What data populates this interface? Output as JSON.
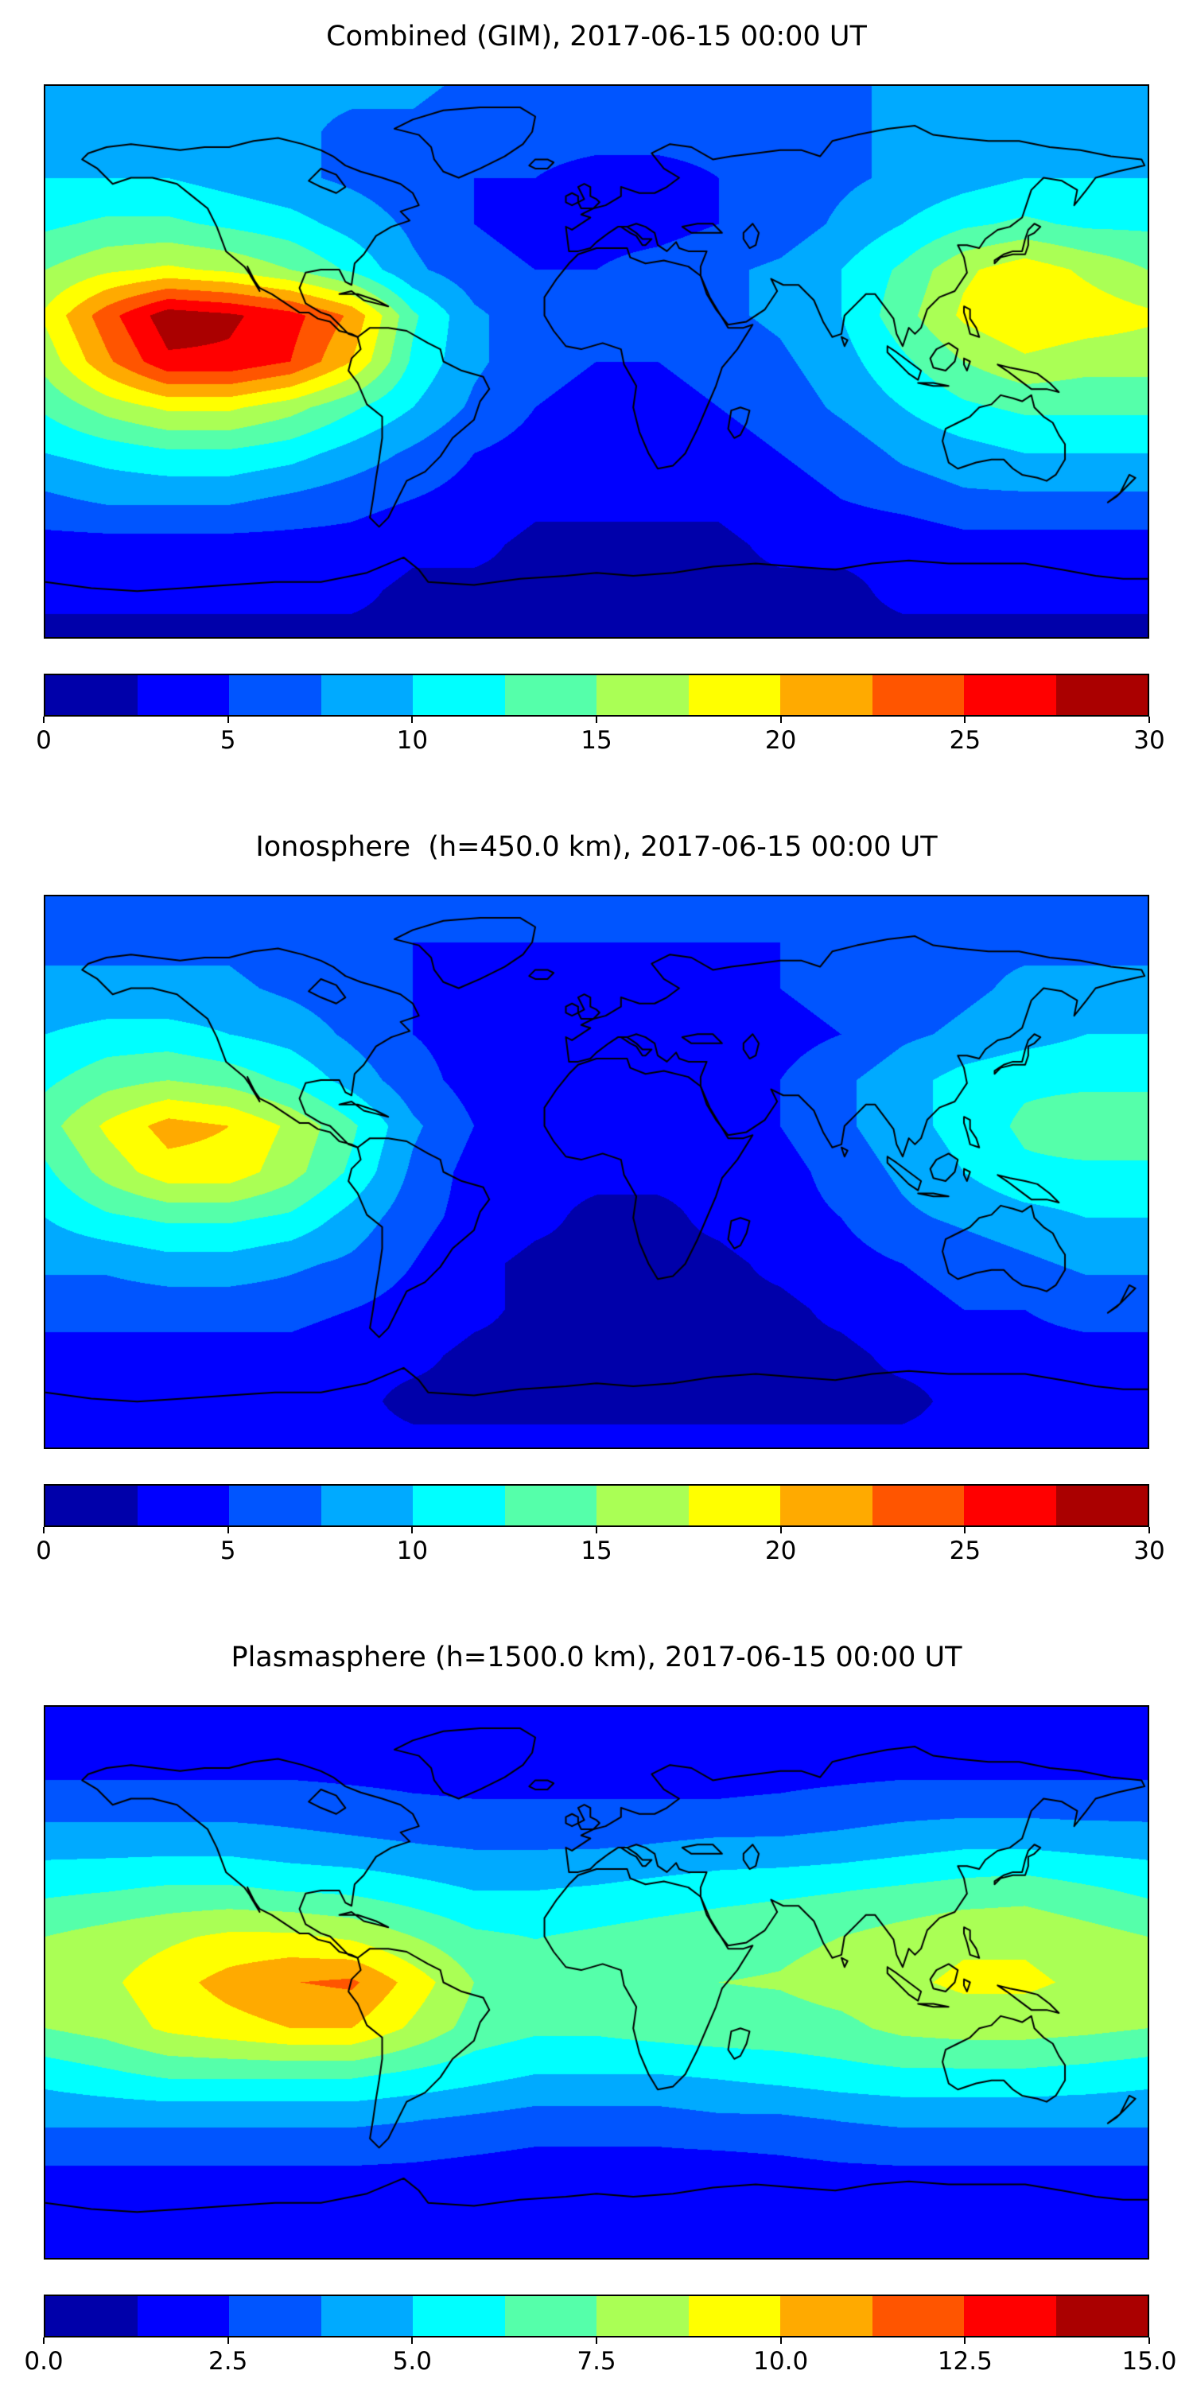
{
  "figure": {
    "panels": [
      {
        "title": "Combined (GIM), 2017-06-15 00:00 UT",
        "colorbar": {
          "min": 0,
          "max": 30,
          "tick_labels": [
            "0",
            "5",
            "10",
            "15",
            "20",
            "25",
            "30"
          ],
          "tick_values": [
            0,
            5,
            10,
            15,
            20,
            25,
            30
          ],
          "n_bands": 12
        }
      },
      {
        "title": "Ionosphere  (h=450.0 km), 2017-06-15 00:00 UT",
        "colorbar": {
          "min": 0,
          "max": 30,
          "tick_labels": [
            "0",
            "5",
            "10",
            "15",
            "20",
            "25",
            "30"
          ],
          "tick_values": [
            0,
            5,
            10,
            15,
            20,
            25,
            30
          ],
          "n_bands": 12
        }
      },
      {
        "title": "Plasmasphere (h=1500.0 km), 2017-06-15 00:00 UT",
        "colorbar": {
          "min": 0,
          "max": 15,
          "tick_labels": [
            "0.0",
            "2.5",
            "5.0",
            "7.5",
            "10.0",
            "12.5",
            "15.0"
          ],
          "tick_values": [
            0,
            2.5,
            5,
            7.5,
            10,
            12.5,
            15
          ],
          "n_bands": 12
        }
      }
    ]
  },
  "chart_data": [
    {
      "type": "heatmap",
      "title": "Combined (GIM), 2017-06-15 00:00 UT",
      "projection": "equirectangular",
      "colormap": "jet",
      "lon_range": [
        -180,
        180
      ],
      "lat_range": [
        -90,
        90
      ],
      "levels": {
        "min": 0,
        "max": 30,
        "step": 2.5
      },
      "colorbar_ticks": [
        0,
        5,
        10,
        15,
        20,
        25,
        30
      ],
      "lon": [
        -180,
        -160,
        -140,
        -120,
        -100,
        -80,
        -60,
        -40,
        -20,
        0,
        20,
        40,
        60,
        80,
        100,
        120,
        140,
        160,
        180
      ],
      "lat": [
        90,
        75,
        60,
        45,
        30,
        15,
        0,
        -15,
        -30,
        -45,
        -60,
        -75,
        -90
      ],
      "values": [
        [
          8,
          8,
          8,
          8,
          8,
          8,
          8,
          7,
          7,
          7,
          7,
          7,
          7,
          7,
          8,
          8,
          8,
          8,
          8
        ],
        [
          9,
          9,
          9,
          8,
          8,
          7,
          7,
          6,
          6,
          6,
          6,
          6,
          7,
          7,
          8,
          8,
          9,
          9,
          9
        ],
        [
          10,
          10,
          10,
          9,
          8,
          7,
          6,
          5,
          5,
          4,
          4,
          5,
          6,
          7,
          8,
          9,
          10,
          10,
          10
        ],
        [
          12,
          13,
          13,
          12,
          11,
          9,
          7,
          5,
          4,
          4,
          4,
          5,
          6,
          8,
          10,
          12,
          13,
          12,
          12
        ],
        [
          15,
          17,
          18,
          17,
          15,
          12,
          8,
          6,
          5,
          5,
          6,
          7,
          8,
          10,
          13,
          17,
          19,
          17,
          15
        ],
        [
          18,
          24,
          29,
          28,
          26,
          22,
          13,
          8,
          6,
          6,
          6,
          7,
          8,
          10,
          14,
          18,
          20,
          19,
          18
        ],
        [
          16,
          22,
          27,
          27,
          25,
          20,
          12,
          8,
          6,
          5,
          5,
          6,
          7,
          9,
          12,
          15,
          17,
          16,
          16
        ],
        [
          13,
          16,
          18,
          18,
          16,
          13,
          10,
          7,
          5,
          4,
          4,
          5,
          6,
          8,
          10,
          12,
          13,
          13,
          13
        ],
        [
          10,
          11,
          12,
          12,
          11,
          9,
          7,
          5,
          4,
          3,
          3,
          4,
          5,
          6,
          8,
          9,
          10,
          10,
          10
        ],
        [
          7,
          8,
          8,
          8,
          7,
          6,
          5,
          4,
          3,
          3,
          3,
          3,
          4,
          5,
          6,
          7,
          7,
          7,
          7
        ],
        [
          4,
          4,
          4,
          4,
          4,
          4,
          3,
          3,
          2,
          2,
          2,
          2,
          3,
          3,
          3,
          4,
          4,
          4,
          4
        ],
        [
          3,
          3,
          3,
          3,
          3,
          3,
          2,
          2,
          2,
          2,
          2,
          2,
          2,
          2,
          3,
          3,
          3,
          3,
          3
        ],
        [
          2,
          2,
          2,
          2,
          2,
          2,
          2,
          2,
          2,
          2,
          2,
          2,
          2,
          2,
          2,
          2,
          2,
          2,
          2
        ]
      ]
    },
    {
      "type": "heatmap",
      "title": "Ionosphere  (h=450.0 km), 2017-06-15 00:00 UT",
      "projection": "equirectangular",
      "colormap": "jet",
      "lon_range": [
        -180,
        180
      ],
      "lat_range": [
        -90,
        90
      ],
      "levels": {
        "min": 0,
        "max": 30,
        "step": 2.5
      },
      "colorbar_ticks": [
        0,
        5,
        10,
        15,
        20,
        25,
        30
      ],
      "lon": [
        -180,
        -160,
        -140,
        -120,
        -100,
        -80,
        -60,
        -40,
        -20,
        0,
        20,
        40,
        60,
        80,
        100,
        120,
        140,
        160,
        180
      ],
      "lat": [
        90,
        75,
        60,
        45,
        30,
        15,
        0,
        -15,
        -30,
        -45,
        -60,
        -75,
        -90
      ],
      "values": [
        [
          7,
          7,
          7,
          7,
          7,
          6,
          6,
          6,
          6,
          6,
          6,
          6,
          6,
          6,
          7,
          7,
          7,
          7,
          7
        ],
        [
          7,
          7,
          7,
          7,
          6,
          6,
          5,
          5,
          5,
          5,
          5,
          5,
          5,
          6,
          6,
          7,
          7,
          7,
          7
        ],
        [
          8,
          8,
          8,
          8,
          7,
          6,
          5,
          4,
          4,
          3,
          3,
          4,
          5,
          6,
          6,
          7,
          8,
          8,
          8
        ],
        [
          10,
          11,
          11,
          10,
          9,
          7,
          5,
          4,
          3,
          3,
          3,
          4,
          4,
          5,
          7,
          8,
          9,
          10,
          10
        ],
        [
          12,
          14,
          15,
          14,
          12,
          9,
          6,
          4,
          3,
          3,
          3,
          4,
          5,
          7,
          9,
          11,
          12,
          12,
          12
        ],
        [
          14,
          18,
          21,
          20,
          17,
          13,
          8,
          5,
          4,
          3,
          3,
          4,
          5,
          7,
          9,
          11,
          13,
          14,
          14
        ],
        [
          12,
          16,
          19,
          19,
          16,
          12,
          7,
          4,
          3,
          3,
          3,
          3,
          4,
          6,
          8,
          10,
          12,
          12,
          12
        ],
        [
          10,
          12,
          13,
          13,
          12,
          9,
          6,
          4,
          3,
          2,
          2,
          3,
          4,
          5,
          7,
          8,
          9,
          10,
          10
        ],
        [
          8,
          8,
          9,
          9,
          8,
          7,
          5,
          3,
          2,
          2,
          2,
          2,
          3,
          4,
          5,
          6,
          7,
          8,
          8
        ],
        [
          6,
          6,
          6,
          6,
          6,
          5,
          4,
          3,
          2,
          2,
          2,
          2,
          2,
          3,
          4,
          5,
          5,
          6,
          6
        ],
        [
          4,
          4,
          4,
          4,
          4,
          3,
          3,
          2,
          2,
          2,
          2,
          2,
          2,
          2,
          3,
          3,
          4,
          4,
          4
        ],
        [
          3,
          3,
          3,
          3,
          3,
          3,
          2,
          2,
          2,
          2,
          2,
          2,
          2,
          2,
          2,
          3,
          3,
          3,
          3
        ],
        [
          3,
          3,
          3,
          3,
          3,
          3,
          3,
          3,
          3,
          3,
          3,
          3,
          3,
          3,
          3,
          3,
          3,
          3,
          3
        ]
      ]
    },
    {
      "type": "heatmap",
      "title": "Plasmasphere (h=1500.0 km), 2017-06-15 00:00 UT",
      "projection": "equirectangular",
      "colormap": "jet",
      "lon_range": [
        -180,
        180
      ],
      "lat_range": [
        -90,
        90
      ],
      "levels": {
        "min": 0,
        "max": 15,
        "step": 1.25
      },
      "colorbar_ticks": [
        0,
        2.5,
        5,
        7.5,
        10,
        12.5,
        15
      ],
      "lon": [
        -180,
        -160,
        -140,
        -120,
        -100,
        -80,
        -60,
        -40,
        -20,
        0,
        20,
        40,
        60,
        80,
        100,
        120,
        140,
        160,
        180
      ],
      "lat": [
        90,
        75,
        60,
        45,
        30,
        15,
        0,
        -15,
        -30,
        -45,
        -60,
        -75,
        -90
      ],
      "values": [
        [
          1.5,
          1.5,
          1.5,
          1.5,
          1.5,
          1.5,
          1.5,
          1.5,
          1.5,
          1.5,
          1.5,
          1.5,
          1.5,
          1.5,
          1.5,
          1.5,
          1.5,
          1.5,
          1.5
        ],
        [
          1.8,
          1.8,
          1.8,
          1.8,
          1.8,
          1.8,
          1.8,
          1.8,
          1.8,
          1.8,
          1.8,
          1.8,
          1.8,
          1.8,
          1.8,
          1.8,
          1.8,
          1.8,
          1.8
        ],
        [
          3,
          3,
          3,
          3,
          3,
          2.8,
          2.6,
          2.5,
          2.5,
          2.5,
          2.5,
          2.5,
          2.6,
          2.8,
          3,
          3,
          3,
          3,
          3
        ],
        [
          4.5,
          4.5,
          4.5,
          4.5,
          4.2,
          4,
          3.8,
          3.6,
          3.6,
          3.6,
          3.8,
          4,
          4,
          4.2,
          4.5,
          4.8,
          4.8,
          4.6,
          4.5
        ],
        [
          6,
          6.2,
          6.5,
          6.5,
          6.2,
          6,
          5.5,
          5,
          5,
          5.2,
          5.5,
          5.8,
          6,
          6.2,
          6.5,
          6.8,
          7,
          6.5,
          6
        ],
        [
          7.5,
          8,
          8.5,
          9,
          9,
          8.5,
          7.5,
          6.5,
          6.2,
          6.5,
          6.8,
          7,
          7.2,
          7.5,
          8,
          8.5,
          8.5,
          8,
          7.5
        ],
        [
          8,
          8.5,
          9.5,
          10.5,
          11.2,
          11.5,
          9.5,
          7.5,
          7,
          7,
          7.2,
          7.5,
          7.6,
          8,
          8.5,
          9,
          9,
          8.5,
          8
        ],
        [
          7.5,
          8,
          9,
          9.5,
          10,
          10,
          8.5,
          7,
          6.5,
          6.5,
          6.8,
          7,
          7,
          7.2,
          7.8,
          8,
          8,
          7.8,
          7.5
        ],
        [
          5.5,
          6,
          6.5,
          6.5,
          6.5,
          6.5,
          6,
          5.5,
          5,
          5,
          5,
          5.2,
          5.5,
          5.8,
          6,
          6,
          6,
          5.8,
          5.5
        ],
        [
          4,
          4,
          4,
          4,
          4,
          4,
          3.8,
          3.5,
          3.2,
          3.2,
          3.2,
          3.5,
          3.5,
          3.8,
          4,
          4,
          4,
          4,
          4
        ],
        [
          2.5,
          2.5,
          2.5,
          2.5,
          2.5,
          2.5,
          2.4,
          2.2,
          2,
          2,
          2,
          2,
          2.2,
          2.4,
          2.5,
          2.5,
          2.5,
          2.5,
          2.5
        ],
        [
          1.8,
          1.8,
          1.8,
          1.8,
          1.8,
          1.8,
          1.8,
          1.8,
          1.8,
          1.8,
          1.8,
          1.8,
          1.8,
          1.8,
          1.8,
          1.8,
          1.8,
          1.8,
          1.8
        ],
        [
          1.5,
          1.5,
          1.5,
          1.5,
          1.5,
          1.5,
          1.5,
          1.5,
          1.5,
          1.5,
          1.5,
          1.5,
          1.5,
          1.5,
          1.5,
          1.5,
          1.5,
          1.5,
          1.5
        ]
      ]
    }
  ]
}
